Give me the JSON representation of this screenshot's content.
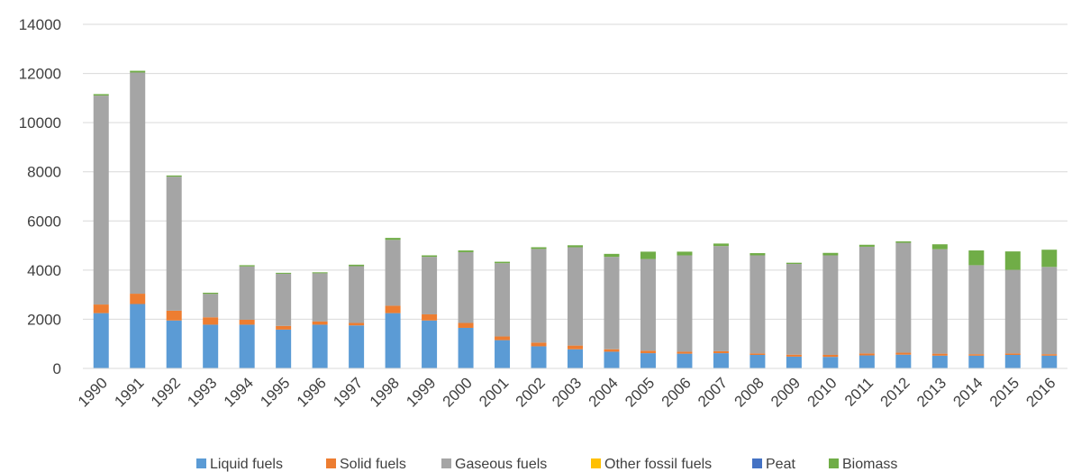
{
  "chart_data": {
    "type": "bar",
    "stacked": true,
    "title": "",
    "xlabel": "",
    "ylabel": "",
    "ylim": [
      0,
      14000
    ],
    "y_ticks": [
      0,
      2000,
      4000,
      6000,
      8000,
      10000,
      12000,
      14000
    ],
    "grid": true,
    "legend_position": "bottom",
    "categories": [
      "1990",
      "1991",
      "1992",
      "1993",
      "1994",
      "1995",
      "1996",
      "1997",
      "1998",
      "1999",
      "2000",
      "2001",
      "2002",
      "2003",
      "2004",
      "2005",
      "2006",
      "2007",
      "2008",
      "2009",
      "2010",
      "2011",
      "2012",
      "2013",
      "2014",
      "2015",
      "2016"
    ],
    "series": [
      {
        "name": "Liquid fuels",
        "color": "#5b9bd5",
        "values": [
          2250,
          2620,
          1950,
          1780,
          1780,
          1580,
          1780,
          1750,
          2250,
          1950,
          1650,
          1150,
          900,
          780,
          680,
          620,
          600,
          620,
          550,
          480,
          470,
          530,
          560,
          520,
          520,
          550,
          520
        ]
      },
      {
        "name": "Solid fuels",
        "color": "#ed7d31",
        "values": [
          350,
          420,
          400,
          300,
          200,
          150,
          130,
          100,
          300,
          250,
          200,
          150,
          150,
          150,
          100,
          100,
          80,
          80,
          60,
          80,
          80,
          80,
          80,
          80,
          60,
          60,
          60
        ]
      },
      {
        "name": "Gaseous fuels",
        "color": "#a5a5a5",
        "values": [
          8500,
          9000,
          5450,
          950,
          2170,
          2120,
          1960,
          2310,
          2680,
          2340,
          2880,
          2980,
          3810,
          4000,
          3760,
          3730,
          3920,
          4280,
          3990,
          3690,
          4050,
          4340,
          4470,
          4250,
          3620,
          3400,
          3550
        ]
      },
      {
        "name": "Other fossil fuels",
        "color": "#ffc000",
        "values": [
          0,
          0,
          0,
          0,
          0,
          0,
          0,
          0,
          0,
          0,
          0,
          0,
          0,
          0,
          0,
          0,
          0,
          0,
          0,
          0,
          0,
          0,
          0,
          0,
          0,
          0,
          0
        ]
      },
      {
        "name": "Peat",
        "color": "#4472c4",
        "values": [
          0,
          0,
          0,
          0,
          0,
          0,
          0,
          0,
          0,
          0,
          0,
          0,
          0,
          0,
          0,
          0,
          0,
          0,
          0,
          0,
          0,
          0,
          0,
          0,
          0,
          0,
          0
        ]
      },
      {
        "name": "Biomass",
        "color": "#70ad47",
        "values": [
          60,
          70,
          50,
          50,
          50,
          40,
          40,
          60,
          80,
          60,
          70,
          60,
          70,
          80,
          120,
          300,
          150,
          100,
          90,
          50,
          100,
          80,
          60,
          200,
          600,
          750,
          700
        ]
      }
    ]
  }
}
